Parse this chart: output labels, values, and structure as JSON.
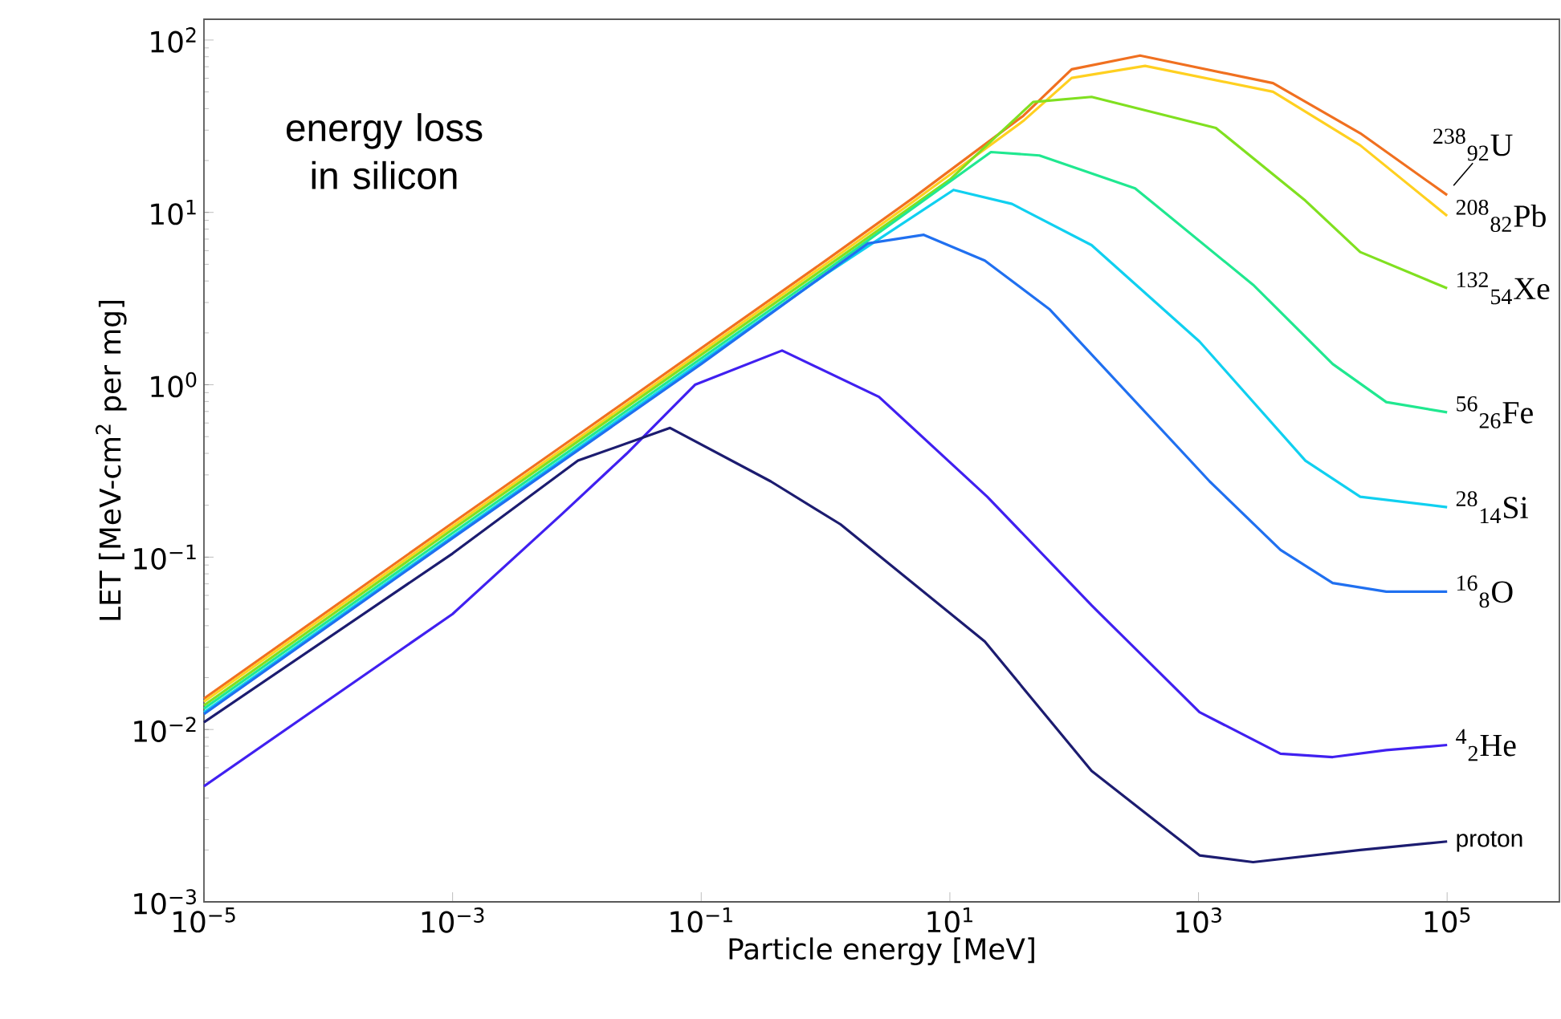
{
  "chart_data": {
    "type": "line",
    "xlabel": "Particle energy [MeV]",
    "ylabel": "LET [MeV-cm$^{2}$ per mg]",
    "annotations": [
      "energy loss in silicon"
    ],
    "log": "xy",
    "xlim": [
      1e-05,
      800000
    ],
    "ylim": [
      0.001,
      132
    ],
    "xticks": [
      {
        "value": 1e-05,
        "label": "10$^{−5}$"
      },
      {
        "value": 0.001,
        "label": "10$^{−3}$"
      },
      {
        "value": 0.1,
        "label": "10$^{−1}$"
      },
      {
        "value": 10,
        "label": "10$^{1}$"
      },
      {
        "value": 1000,
        "label": "10$^{3}$"
      },
      {
        "value": 100000,
        "label": "10$^{5}$"
      }
    ],
    "yticks": [
      {
        "value": 0.001,
        "label": "10$^{−3}$"
      },
      {
        "value": 0.01,
        "label": "10$^{−2}$"
      },
      {
        "value": 0.1,
        "label": "10$^{−1}$"
      },
      {
        "value": 1,
        "label": "10$^{0}$"
      },
      {
        "value": 10,
        "label": "10$^{1}$"
      },
      {
        "value": 100,
        "label": "10$^{2}$"
      }
    ],
    "series": [
      {
        "name": "$^{238}$$_{92}$U",
        "color": "#f07020",
        "x": [
          1e-05,
          0.001,
          0.0123,
          1,
          5.2,
          38.9,
          95.5,
          339,
          3980,
          20000,
          100000
        ],
        "values": [
          0.0151,
          0.158,
          0.562,
          5.25,
          12.3,
          36.3,
          67.6,
          81.3,
          56.2,
          28.8,
          12.6
        ]
      },
      {
        "name": "$^{208}$$_{82}$Pb",
        "color": "#ffd020",
        "x": [
          1e-05,
          0.001,
          0.0123,
          1,
          5.2,
          38.9,
          95.5,
          372,
          3980,
          20000,
          100000
        ],
        "values": [
          0.0145,
          0.151,
          0.537,
          5.01,
          11.7,
          33.9,
          60.3,
          70.8,
          50.1,
          24.5,
          9.55
        ]
      },
      {
        "name": "$^{132}$$_{54}$Xe",
        "color": "#80e020",
        "x": [
          1e-05,
          0.001,
          1,
          10,
          46.8,
          138,
          1380,
          7240,
          20000,
          100000
        ],
        "values": [
          0.0138,
          0.145,
          4.79,
          15.5,
          43.7,
          46.8,
          30.9,
          11.7,
          5.89,
          3.63
        ]
      },
      {
        "name": "$^{56}$$_{26}$Fe",
        "color": "#20e890",
        "x": [
          1e-05,
          0.001,
          1,
          21.4,
          52.5,
          309,
          2750,
          12000,
          32400,
          100000
        ],
        "values": [
          0.0132,
          0.138,
          4.57,
          22.4,
          21.4,
          13.8,
          3.8,
          1.32,
          0.794,
          0.692
        ]
      },
      {
        "name": "$^{28}$$_{14}$Si",
        "color": "#10d0f0",
        "x": [
          1e-05,
          0.001,
          1,
          10.7,
          31.6,
          138,
          1020,
          7240,
          20000,
          100000
        ],
        "values": [
          0.0126,
          0.132,
          4.37,
          13.5,
          11.2,
          6.46,
          1.78,
          0.363,
          0.224,
          0.195
        ]
      },
      {
        "name": "$^{16}$$_{8}$O",
        "color": "#2070f0",
        "x": [
          1e-05,
          0.001,
          0.1,
          2.19,
          6.17,
          19.1,
          63.1,
          1230,
          4570,
          12000,
          32400,
          100000
        ],
        "values": [
          0.0123,
          0.129,
          1.32,
          6.61,
          7.41,
          5.25,
          2.75,
          0.275,
          0.11,
          0.0708,
          0.0631,
          0.0631
        ]
      },
      {
        "name": "$^{4}$$_{2}$He",
        "color": "#4020f0",
        "x": [
          1e-05,
          0.001,
          0.00759,
          0.0251,
          0.0891,
          0.447,
          2.69,
          20,
          138,
          1020,
          4570,
          12000,
          32400,
          100000
        ],
        "values": [
          0.00468,
          0.0468,
          0.178,
          0.398,
          1.0,
          1.58,
          0.851,
          0.224,
          0.0525,
          0.0126,
          0.00724,
          0.00692,
          0.00759,
          0.00813
        ]
      },
      {
        "name": "proton",
        "color": "#1c1c70",
        "x": [
          1e-05,
          0.001,
          0.0102,
          0.0562,
          0.363,
          1.32,
          19.1,
          138,
          1020,
          2750,
          20000,
          100000
        ],
        "values": [
          0.011,
          0.105,
          0.363,
          0.562,
          0.275,
          0.155,
          0.0324,
          0.00575,
          0.00186,
          0.0017,
          0.002,
          0.00224
        ]
      }
    ]
  }
}
